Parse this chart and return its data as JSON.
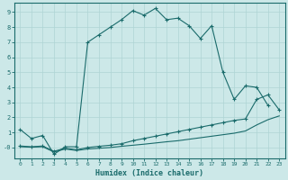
{
  "bg_color": "#cce8e8",
  "line_color": "#1a6b6b",
  "grid_color": "#aed4d4",
  "xlabel": "Humidex (Indice chaleur)",
  "xlim": [
    -0.5,
    23.5
  ],
  "ylim": [
    -0.7,
    9.6
  ],
  "yticks": [
    0,
    1,
    2,
    3,
    4,
    5,
    6,
    7,
    8,
    9
  ],
  "ytick_labels": [
    "-0",
    "1",
    "2",
    "3",
    "4",
    "5",
    "6",
    "7",
    "8",
    "9"
  ],
  "xticks": [
    0,
    1,
    2,
    3,
    4,
    5,
    6,
    7,
    8,
    9,
    10,
    11,
    12,
    13,
    14,
    15,
    16,
    17,
    18,
    19,
    20,
    21,
    22,
    23
  ],
  "line1_x": [
    0,
    1,
    2,
    3,
    4,
    5,
    6,
    7,
    8,
    9,
    10,
    11,
    12,
    13,
    14,
    15,
    16,
    17,
    18,
    19,
    20,
    21,
    22,
    23
  ],
  "line1_y": [
    1.2,
    0.6,
    0.8,
    -0.45,
    0.05,
    0.05,
    7.0,
    7.5,
    8.0,
    8.5,
    9.1,
    8.8,
    9.25,
    8.5,
    8.6,
    8.1,
    7.25,
    8.1,
    5.0,
    3.2,
    4.1,
    4.0,
    2.8,
    null
  ],
  "line2_x": [
    0,
    1,
    2,
    3,
    4,
    5,
    6,
    7,
    8,
    9,
    10,
    11,
    12,
    13,
    14,
    15,
    16,
    17,
    18,
    19,
    20,
    21,
    22,
    23
  ],
  "line2_y": [
    0.1,
    0.05,
    0.1,
    -0.25,
    -0.05,
    -0.15,
    0.0,
    0.08,
    0.15,
    0.25,
    0.45,
    0.6,
    0.75,
    0.9,
    1.05,
    1.2,
    1.35,
    1.5,
    1.65,
    1.8,
    1.9,
    3.2,
    3.5,
    2.5
  ],
  "line3_x": [
    0,
    1,
    2,
    3,
    4,
    5,
    6,
    7,
    8,
    9,
    10,
    11,
    12,
    13,
    14,
    15,
    16,
    17,
    18,
    19,
    20,
    21,
    22,
    23
  ],
  "line3_y": [
    0.05,
    0.02,
    0.05,
    -0.3,
    -0.1,
    -0.2,
    -0.1,
    -0.05,
    0.0,
    0.08,
    0.15,
    0.22,
    0.3,
    0.38,
    0.45,
    0.55,
    0.65,
    0.75,
    0.85,
    0.95,
    1.1,
    1.5,
    1.85,
    2.1
  ],
  "marker": "+"
}
